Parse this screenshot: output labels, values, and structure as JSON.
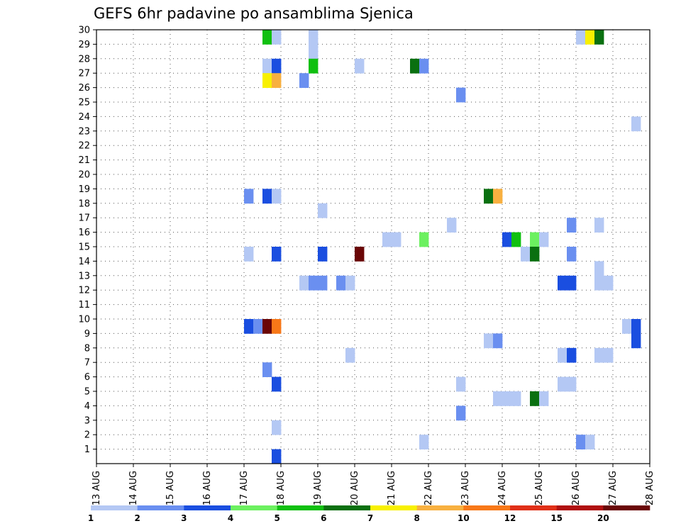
{
  "chart_data": {
    "type": "heatmap",
    "title": "GEFS 6hr padavine po ansamblima Sjenica",
    "xlabel": "",
    "ylabel": "",
    "x_tick_labels": [
      "13 AUG",
      "14 AUG",
      "15 AUG",
      "16 AUG",
      "17 AUG",
      "18 AUG",
      "19 AUG",
      "20 AUG",
      "21 AUG",
      "22 AUG",
      "23 AUG",
      "24 AUG",
      "25 AUG",
      "26 AUG",
      "27 AUG",
      "28 AUG"
    ],
    "y_ticks": [
      1,
      2,
      3,
      4,
      5,
      6,
      7,
      8,
      9,
      10,
      11,
      12,
      13,
      14,
      15,
      16,
      17,
      18,
      19,
      20,
      21,
      22,
      23,
      24,
      25,
      26,
      27,
      28,
      29,
      30
    ],
    "ylim": [
      0,
      30
    ],
    "grid": true,
    "time_step_hours": 6,
    "colorbar": {
      "tick_labels": [
        "1",
        "2",
        "3",
        "4",
        "5",
        "6",
        "7",
        "8",
        "10",
        "12",
        "15",
        "20"
      ],
      "colors": [
        "#b4c8f4",
        "#6a8ff0",
        "#1a4ee0",
        "#6cf060",
        "#10c010",
        "#0a7010",
        "#f8f000",
        "#f8b040",
        "#f87818",
        "#e03018",
        "#b01010",
        "#6a0606"
      ]
    },
    "cells": [
      {
        "day": "17 AUG",
        "hour": 12,
        "member": 30,
        "color": "#10c010"
      },
      {
        "day": "17 AUG",
        "hour": 18,
        "member": 30,
        "color": "#b4c8f4"
      },
      {
        "day": "18 AUG",
        "hour": 18,
        "member": 30,
        "color": "#b4c8f4"
      },
      {
        "day": "26 AUG",
        "hour": 0,
        "member": 30,
        "color": "#b4c8f4"
      },
      {
        "day": "26 AUG",
        "hour": 6,
        "member": 30,
        "color": "#f8f000"
      },
      {
        "day": "26 AUG",
        "hour": 12,
        "member": 30,
        "color": "#0a7010"
      },
      {
        "day": "18 AUG",
        "hour": 18,
        "member": 29,
        "color": "#b4c8f4"
      },
      {
        "day": "17 AUG",
        "hour": 12,
        "member": 28,
        "color": "#b4c8f4"
      },
      {
        "day": "17 AUG",
        "hour": 18,
        "member": 28,
        "color": "#1a4ee0"
      },
      {
        "day": "18 AUG",
        "hour": 18,
        "member": 28,
        "color": "#10c010"
      },
      {
        "day": "20 AUG",
        "hour": 0,
        "member": 28,
        "color": "#b4c8f4"
      },
      {
        "day": "21 AUG",
        "hour": 12,
        "member": 28,
        "color": "#0a7010"
      },
      {
        "day": "21 AUG",
        "hour": 18,
        "member": 28,
        "color": "#6a8ff0"
      },
      {
        "day": "17 AUG",
        "hour": 12,
        "member": 27,
        "color": "#f8f000"
      },
      {
        "day": "17 AUG",
        "hour": 18,
        "member": 27,
        "color": "#f8b040"
      },
      {
        "day": "18 AUG",
        "hour": 12,
        "member": 27,
        "color": "#6a8ff0"
      },
      {
        "day": "22 AUG",
        "hour": 18,
        "member": 26,
        "color": "#6a8ff0"
      },
      {
        "day": "27 AUG",
        "hour": 12,
        "member": 24,
        "color": "#b4c8f4"
      },
      {
        "day": "17 AUG",
        "hour": 0,
        "member": 19,
        "color": "#6a8ff0"
      },
      {
        "day": "17 AUG",
        "hour": 12,
        "member": 19,
        "color": "#1a4ee0"
      },
      {
        "day": "17 AUG",
        "hour": 18,
        "member": 19,
        "color": "#b4c8f4"
      },
      {
        "day": "23 AUG",
        "hour": 12,
        "member": 19,
        "color": "#0a7010"
      },
      {
        "day": "23 AUG",
        "hour": 18,
        "member": 19,
        "color": "#f8b040"
      },
      {
        "day": "19 AUG",
        "hour": 0,
        "member": 18,
        "color": "#b4c8f4"
      },
      {
        "day": "22 AUG",
        "hour": 12,
        "member": 17,
        "color": "#b4c8f4"
      },
      {
        "day": "25 AUG",
        "hour": 18,
        "member": 17,
        "color": "#6a8ff0"
      },
      {
        "day": "26 AUG",
        "hour": 12,
        "member": 17,
        "color": "#b4c8f4"
      },
      {
        "day": "20 AUG",
        "hour": 18,
        "member": 16,
        "color": "#b4c8f4"
      },
      {
        "day": "21 AUG",
        "hour": 0,
        "member": 16,
        "color": "#b4c8f4"
      },
      {
        "day": "21 AUG",
        "hour": 18,
        "member": 16,
        "color": "#6cf060"
      },
      {
        "day": "24 AUG",
        "hour": 0,
        "member": 16,
        "color": "#1a4ee0"
      },
      {
        "day": "24 AUG",
        "hour": 6,
        "member": 16,
        "color": "#10c010"
      },
      {
        "day": "24 AUG",
        "hour": 18,
        "member": 16,
        "color": "#6cf060"
      },
      {
        "day": "25 AUG",
        "hour": 0,
        "member": 16,
        "color": "#b4c8f4"
      },
      {
        "day": "17 AUG",
        "hour": 0,
        "member": 15,
        "color": "#b4c8f4"
      },
      {
        "day": "17 AUG",
        "hour": 18,
        "member": 15,
        "color": "#1a4ee0"
      },
      {
        "day": "19 AUG",
        "hour": 0,
        "member": 15,
        "color": "#1a4ee0"
      },
      {
        "day": "20 AUG",
        "hour": 0,
        "member": 15,
        "color": "#6a0606"
      },
      {
        "day": "24 AUG",
        "hour": 12,
        "member": 15,
        "color": "#b4c8f4"
      },
      {
        "day": "24 AUG",
        "hour": 18,
        "member": 15,
        "color": "#0a7010"
      },
      {
        "day": "25 AUG",
        "hour": 18,
        "member": 15,
        "color": "#6a8ff0"
      },
      {
        "day": "26 AUG",
        "hour": 12,
        "member": 14,
        "color": "#b4c8f4"
      },
      {
        "day": "18 AUG",
        "hour": 12,
        "member": 13,
        "color": "#b4c8f4"
      },
      {
        "day": "18 AUG",
        "hour": 18,
        "member": 13,
        "color": "#6a8ff0"
      },
      {
        "day": "19 AUG",
        "hour": 0,
        "member": 13,
        "color": "#6a8ff0"
      },
      {
        "day": "19 AUG",
        "hour": 12,
        "member": 13,
        "color": "#6a8ff0"
      },
      {
        "day": "19 AUG",
        "hour": 18,
        "member": 13,
        "color": "#b4c8f4"
      },
      {
        "day": "25 AUG",
        "hour": 12,
        "member": 13,
        "color": "#1a4ee0"
      },
      {
        "day": "25 AUG",
        "hour": 18,
        "member": 13,
        "color": "#1a4ee0"
      },
      {
        "day": "26 AUG",
        "hour": 12,
        "member": 13,
        "color": "#b4c8f4"
      },
      {
        "day": "26 AUG",
        "hour": 18,
        "member": 13,
        "color": "#b4c8f4"
      },
      {
        "day": "17 AUG",
        "hour": 0,
        "member": 10,
        "color": "#1a4ee0"
      },
      {
        "day": "17 AUG",
        "hour": 6,
        "member": 10,
        "color": "#6a8ff0"
      },
      {
        "day": "17 AUG",
        "hour": 12,
        "member": 10,
        "color": "#6a0606"
      },
      {
        "day": "17 AUG",
        "hour": 18,
        "member": 10,
        "color": "#f87818"
      },
      {
        "day": "27 AUG",
        "hour": 6,
        "member": 10,
        "color": "#b4c8f4"
      },
      {
        "day": "27 AUG",
        "hour": 12,
        "member": 10,
        "color": "#1a4ee0"
      },
      {
        "day": "23 AUG",
        "hour": 12,
        "member": 9,
        "color": "#b4c8f4"
      },
      {
        "day": "23 AUG",
        "hour": 18,
        "member": 9,
        "color": "#6a8ff0"
      },
      {
        "day": "27 AUG",
        "hour": 12,
        "member": 9,
        "color": "#1a4ee0"
      },
      {
        "day": "19 AUG",
        "hour": 18,
        "member": 8,
        "color": "#b4c8f4"
      },
      {
        "day": "25 AUG",
        "hour": 12,
        "member": 8,
        "color": "#b4c8f4"
      },
      {
        "day": "25 AUG",
        "hour": 18,
        "member": 8,
        "color": "#1a4ee0"
      },
      {
        "day": "26 AUG",
        "hour": 12,
        "member": 8,
        "color": "#b4c8f4"
      },
      {
        "day": "26 AUG",
        "hour": 18,
        "member": 8,
        "color": "#b4c8f4"
      },
      {
        "day": "17 AUG",
        "hour": 12,
        "member": 7,
        "color": "#6a8ff0"
      },
      {
        "day": "17 AUG",
        "hour": 18,
        "member": 6,
        "color": "#1a4ee0"
      },
      {
        "day": "22 AUG",
        "hour": 18,
        "member": 6,
        "color": "#b4c8f4"
      },
      {
        "day": "25 AUG",
        "hour": 12,
        "member": 6,
        "color": "#b4c8f4"
      },
      {
        "day": "25 AUG",
        "hour": 18,
        "member": 6,
        "color": "#b4c8f4"
      },
      {
        "day": "23 AUG",
        "hour": 18,
        "member": 5,
        "color": "#b4c8f4"
      },
      {
        "day": "24 AUG",
        "hour": 0,
        "member": 5,
        "color": "#b4c8f4"
      },
      {
        "day": "24 AUG",
        "hour": 6,
        "member": 5,
        "color": "#b4c8f4"
      },
      {
        "day": "24 AUG",
        "hour": 18,
        "member": 5,
        "color": "#0a7010"
      },
      {
        "day": "25 AUG",
        "hour": 0,
        "member": 5,
        "color": "#b4c8f4"
      },
      {
        "day": "22 AUG",
        "hour": 18,
        "member": 4,
        "color": "#6a8ff0"
      },
      {
        "day": "17 AUG",
        "hour": 18,
        "member": 3,
        "color": "#b4c8f4"
      },
      {
        "day": "21 AUG",
        "hour": 18,
        "member": 2,
        "color": "#b4c8f4"
      },
      {
        "day": "26 AUG",
        "hour": 0,
        "member": 2,
        "color": "#6a8ff0"
      },
      {
        "day": "26 AUG",
        "hour": 6,
        "member": 2,
        "color": "#b4c8f4"
      },
      {
        "day": "17 AUG",
        "hour": 18,
        "member": 1,
        "color": "#1a4ee0"
      }
    ]
  }
}
